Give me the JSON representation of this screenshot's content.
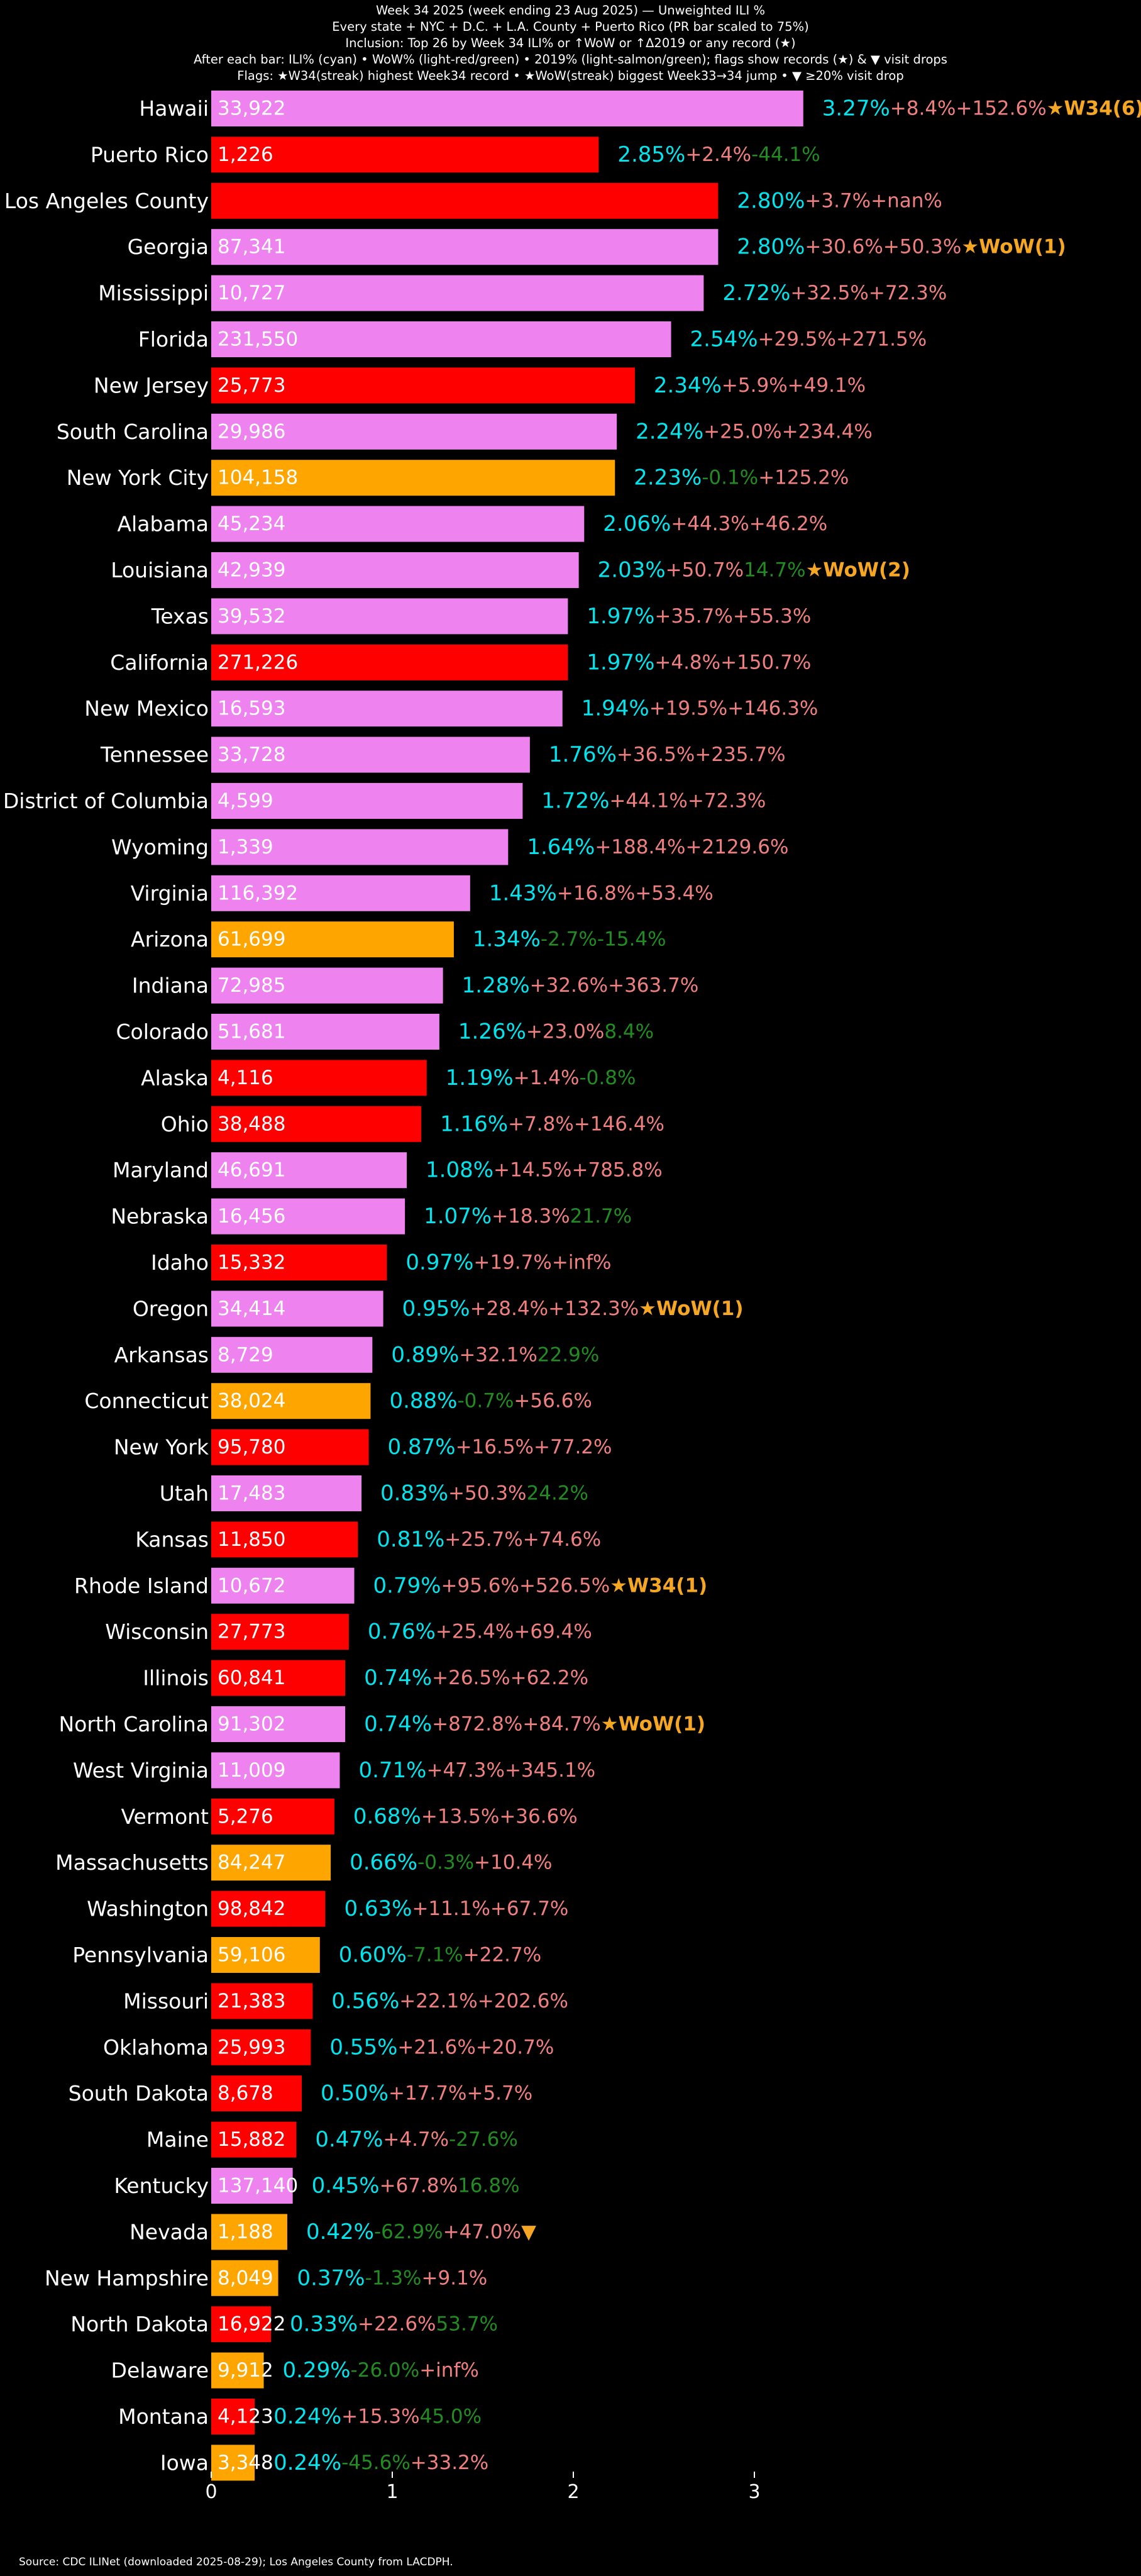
{
  "header": {
    "title": "Week 34 2025 (week ending 23 Aug 2025) — Unweighted ILI %",
    "line2": "Every state + NYC + D.C. + L.A. County + Puerto Rico (PR bar scaled to 75%)",
    "line3": "Inclusion: Top 26 by Week 34 ILI% or ↑WoW or ↑Δ2019 or any record (★)",
    "line4": "After each bar: ILI% (cyan) • WoW% (light-red/green) • 2019% (light-salmon/green); flags show records (★) & ▼ visit drops",
    "line5": "Flags: ★W34(streak) highest Week34 record • ★WoW(streak) biggest Week33→34 jump • ▼ ≥20% visit drop"
  },
  "source": "Source: CDC ILINet (downloaded 2025-08-29); Los Angeles County from LACDPH.",
  "colors": {
    "background": "#000000",
    "bar_pink": "#ee82ee",
    "bar_red": "#ff0000",
    "bar_orange": "#ffa500",
    "ili_text": "#00e5ee",
    "pos_text": "#f08080",
    "neg_text": "#228b22",
    "flag_text": "#f5a623"
  },
  "chart_data": {
    "type": "bar",
    "orientation": "horizontal",
    "xlim": [
      0,
      3.45
    ],
    "xticks": [
      "0",
      "1",
      "2",
      "3"
    ],
    "grid": false,
    "rows": [
      {
        "name": "Hawaii",
        "value": 3.27,
        "visits": "33,922",
        "color": "pink",
        "ili": "3.27%",
        "wow": "+8.4%",
        "y2019": "+152.6%",
        "flag": "★W34(6)"
      },
      {
        "name": "Puerto Rico",
        "value": 2.14,
        "visits": "1,226",
        "color": "red",
        "ili": "2.85%",
        "wow": "+2.4%",
        "y2019": "-44.1%",
        "flag": ""
      },
      {
        "name": "Los Angeles County",
        "value": 2.8,
        "visits": "",
        "color": "red",
        "ili": "2.80%",
        "wow": "+3.7%",
        "y2019": "+nan%",
        "flag": ""
      },
      {
        "name": "Georgia",
        "value": 2.8,
        "visits": "87,341",
        "color": "pink",
        "ili": "2.80%",
        "wow": "+30.6%",
        "y2019": "+50.3%",
        "flag": "★WoW(1)"
      },
      {
        "name": "Mississippi",
        "value": 2.72,
        "visits": "10,727",
        "color": "pink",
        "ili": "2.72%",
        "wow": "+32.5%",
        "y2019": "+72.3%",
        "flag": ""
      },
      {
        "name": "Florida",
        "value": 2.54,
        "visits": "231,550",
        "color": "pink",
        "ili": "2.54%",
        "wow": "+29.5%",
        "y2019": "+271.5%",
        "flag": ""
      },
      {
        "name": "New Jersey",
        "value": 2.34,
        "visits": "25,773",
        "color": "red",
        "ili": "2.34%",
        "wow": "+5.9%",
        "y2019": "+49.1%",
        "flag": ""
      },
      {
        "name": "South Carolina",
        "value": 2.24,
        "visits": "29,986",
        "color": "pink",
        "ili": "2.24%",
        "wow": "+25.0%",
        "y2019": "+234.4%",
        "flag": ""
      },
      {
        "name": "New York City",
        "value": 2.23,
        "visits": "104,158",
        "color": "orange",
        "ili": "2.23%",
        "wow": "-0.1%",
        "y2019": "+125.2%",
        "flag": ""
      },
      {
        "name": "Alabama",
        "value": 2.06,
        "visits": "45,234",
        "color": "pink",
        "ili": "2.06%",
        "wow": "+44.3%",
        "y2019": "+46.2%",
        "flag": ""
      },
      {
        "name": "Louisiana",
        "value": 2.03,
        "visits": "42,939",
        "color": "pink",
        "ili": "2.03%",
        "wow": "+50.7%",
        "y2019": "14.7%",
        "flag": "★WoW(2)"
      },
      {
        "name": "Texas",
        "value": 1.97,
        "visits": "39,532",
        "color": "pink",
        "ili": "1.97%",
        "wow": "+35.7%",
        "y2019": "+55.3%",
        "flag": ""
      },
      {
        "name": "California",
        "value": 1.97,
        "visits": "271,226",
        "color": "red",
        "ili": "1.97%",
        "wow": "+4.8%",
        "y2019": "+150.7%",
        "flag": ""
      },
      {
        "name": "New Mexico",
        "value": 1.94,
        "visits": "16,593",
        "color": "pink",
        "ili": "1.94%",
        "wow": "+19.5%",
        "y2019": "+146.3%",
        "flag": ""
      },
      {
        "name": "Tennessee",
        "value": 1.76,
        "visits": "33,728",
        "color": "pink",
        "ili": "1.76%",
        "wow": "+36.5%",
        "y2019": "+235.7%",
        "flag": ""
      },
      {
        "name": "District of Columbia",
        "value": 1.72,
        "visits": "4,599",
        "color": "pink",
        "ili": "1.72%",
        "wow": "+44.1%",
        "y2019": "+72.3%",
        "flag": ""
      },
      {
        "name": "Wyoming",
        "value": 1.64,
        "visits": "1,339",
        "color": "pink",
        "ili": "1.64%",
        "wow": "+188.4%",
        "y2019": "+2129.6%",
        "flag": ""
      },
      {
        "name": "Virginia",
        "value": 1.43,
        "visits": "116,392",
        "color": "pink",
        "ili": "1.43%",
        "wow": "+16.8%",
        "y2019": "+53.4%",
        "flag": ""
      },
      {
        "name": "Arizona",
        "value": 1.34,
        "visits": "61,699",
        "color": "orange",
        "ili": "1.34%",
        "wow": "-2.7%",
        "y2019": "-15.4%",
        "flag": ""
      },
      {
        "name": "Indiana",
        "value": 1.28,
        "visits": "72,985",
        "color": "pink",
        "ili": "1.28%",
        "wow": "+32.6%",
        "y2019": "+363.7%",
        "flag": ""
      },
      {
        "name": "Colorado",
        "value": 1.26,
        "visits": "51,681",
        "color": "pink",
        "ili": "1.26%",
        "wow": "+23.0%",
        "y2019": "8.4%",
        "flag": ""
      },
      {
        "name": "Alaska",
        "value": 1.19,
        "visits": "4,116",
        "color": "red",
        "ili": "1.19%",
        "wow": "+1.4%",
        "y2019": "-0.8%",
        "flag": ""
      },
      {
        "name": "Ohio",
        "value": 1.16,
        "visits": "38,488",
        "color": "red",
        "ili": "1.16%",
        "wow": "+7.8%",
        "y2019": "+146.4%",
        "flag": ""
      },
      {
        "name": "Maryland",
        "value": 1.08,
        "visits": "46,691",
        "color": "pink",
        "ili": "1.08%",
        "wow": "+14.5%",
        "y2019": "+785.8%",
        "flag": ""
      },
      {
        "name": "Nebraska",
        "value": 1.07,
        "visits": "16,456",
        "color": "pink",
        "ili": "1.07%",
        "wow": "+18.3%",
        "y2019": "21.7%",
        "flag": ""
      },
      {
        "name": "Idaho",
        "value": 0.97,
        "visits": "15,332",
        "color": "red",
        "ili": "0.97%",
        "wow": "+19.7%",
        "y2019": "+inf%",
        "flag": ""
      },
      {
        "name": "Oregon",
        "value": 0.95,
        "visits": "34,414",
        "color": "pink",
        "ili": "0.95%",
        "wow": "+28.4%",
        "y2019": "+132.3%",
        "flag": "★WoW(1)"
      },
      {
        "name": "Arkansas",
        "value": 0.89,
        "visits": "8,729",
        "color": "pink",
        "ili": "0.89%",
        "wow": "+32.1%",
        "y2019": "22.9%",
        "flag": ""
      },
      {
        "name": "Connecticut",
        "value": 0.88,
        "visits": "38,024",
        "color": "orange",
        "ili": "0.88%",
        "wow": "-0.7%",
        "y2019": "+56.6%",
        "flag": ""
      },
      {
        "name": "New York",
        "value": 0.87,
        "visits": "95,780",
        "color": "red",
        "ili": "0.87%",
        "wow": "+16.5%",
        "y2019": "+77.2%",
        "flag": ""
      },
      {
        "name": "Utah",
        "value": 0.83,
        "visits": "17,483",
        "color": "pink",
        "ili": "0.83%",
        "wow": "+50.3%",
        "y2019": "24.2%",
        "flag": ""
      },
      {
        "name": "Kansas",
        "value": 0.81,
        "visits": "11,850",
        "color": "red",
        "ili": "0.81%",
        "wow": "+25.7%",
        "y2019": "+74.6%",
        "flag": ""
      },
      {
        "name": "Rhode Island",
        "value": 0.79,
        "visits": "10,672",
        "color": "pink",
        "ili": "0.79%",
        "wow": "+95.6%",
        "y2019": "+526.5%",
        "flag": "★W34(1)"
      },
      {
        "name": "Wisconsin",
        "value": 0.76,
        "visits": "27,773",
        "color": "red",
        "ili": "0.76%",
        "wow": "+25.4%",
        "y2019": "+69.4%",
        "flag": ""
      },
      {
        "name": "Illinois",
        "value": 0.74,
        "visits": "60,841",
        "color": "red",
        "ili": "0.74%",
        "wow": "+26.5%",
        "y2019": "+62.2%",
        "flag": ""
      },
      {
        "name": "North Carolina",
        "value": 0.74,
        "visits": "91,302",
        "color": "pink",
        "ili": "0.74%",
        "wow": "+872.8%",
        "y2019": "+84.7%",
        "flag": "★WoW(1)"
      },
      {
        "name": "West Virginia",
        "value": 0.71,
        "visits": "11,009",
        "color": "pink",
        "ili": "0.71%",
        "wow": "+47.3%",
        "y2019": "+345.1%",
        "flag": ""
      },
      {
        "name": "Vermont",
        "value": 0.68,
        "visits": "5,276",
        "color": "red",
        "ili": "0.68%",
        "wow": "+13.5%",
        "y2019": "+36.6%",
        "flag": ""
      },
      {
        "name": "Massachusetts",
        "value": 0.66,
        "visits": "84,247",
        "color": "orange",
        "ili": "0.66%",
        "wow": "-0.3%",
        "y2019": "+10.4%",
        "flag": ""
      },
      {
        "name": "Washington",
        "value": 0.63,
        "visits": "98,842",
        "color": "red",
        "ili": "0.63%",
        "wow": "+11.1%",
        "y2019": "+67.7%",
        "flag": ""
      },
      {
        "name": "Pennsylvania",
        "value": 0.6,
        "visits": "59,106",
        "color": "orange",
        "ili": "0.60%",
        "wow": "-7.1%",
        "y2019": "+22.7%",
        "flag": ""
      },
      {
        "name": "Missouri",
        "value": 0.56,
        "visits": "21,383",
        "color": "red",
        "ili": "0.56%",
        "wow": "+22.1%",
        "y2019": "+202.6%",
        "flag": ""
      },
      {
        "name": "Oklahoma",
        "value": 0.55,
        "visits": "25,993",
        "color": "red",
        "ili": "0.55%",
        "wow": "+21.6%",
        "y2019": "+20.7%",
        "flag": ""
      },
      {
        "name": "South Dakota",
        "value": 0.5,
        "visits": "8,678",
        "color": "red",
        "ili": "0.50%",
        "wow": "+17.7%",
        "y2019": "+5.7%",
        "flag": ""
      },
      {
        "name": "Maine",
        "value": 0.47,
        "visits": "15,882",
        "color": "red",
        "ili": "0.47%",
        "wow": "+4.7%",
        "y2019": "-27.6%",
        "flag": ""
      },
      {
        "name": "Kentucky",
        "value": 0.45,
        "visits": "137,140",
        "color": "pink",
        "ili": "0.45%",
        "wow": "+67.8%",
        "y2019": "16.8%",
        "flag": ""
      },
      {
        "name": "Nevada",
        "value": 0.42,
        "visits": "1,188",
        "color": "orange",
        "ili": "0.42%",
        "wow": "-62.9%",
        "y2019": "+47.0%",
        "flag": "▼"
      },
      {
        "name": "New Hampshire",
        "value": 0.37,
        "visits": "8,049",
        "color": "orange",
        "ili": "0.37%",
        "wow": "-1.3%",
        "y2019": "+9.1%",
        "flag": ""
      },
      {
        "name": "North Dakota",
        "value": 0.33,
        "visits": "16,922",
        "color": "red",
        "ili": "0.33%",
        "wow": "+22.6%",
        "y2019": "53.7%",
        "flag": ""
      },
      {
        "name": "Delaware",
        "value": 0.29,
        "visits": "9,912",
        "color": "orange",
        "ili": "0.29%",
        "wow": "-26.0%",
        "y2019": "+inf%",
        "flag": ""
      },
      {
        "name": "Montana",
        "value": 0.24,
        "visits": "4,123",
        "color": "red",
        "ili": "0.24%",
        "wow": "+15.3%",
        "y2019": "45.0%",
        "flag": ""
      },
      {
        "name": "Iowa",
        "value": 0.24,
        "visits": "3,348",
        "color": "orange",
        "ili": "0.24%",
        "wow": "-45.6%",
        "y2019": "+33.2%",
        "flag": ""
      }
    ]
  }
}
